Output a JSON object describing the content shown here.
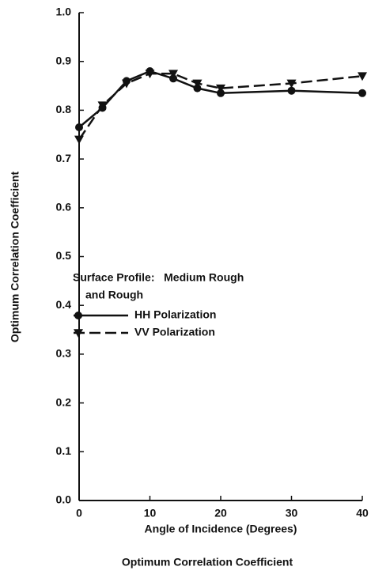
{
  "chart_data": {
    "type": "line",
    "x_label": "Angle of Incidence (Degrees)",
    "y_label": "Optimum Correlation Coefficient",
    "caption": "Optimum Correlation Coefficient",
    "legend_title": [
      "Surface Profile:   Medium Rough",
      "and Rough"
    ],
    "xlim": [
      0,
      40
    ],
    "xticks": [
      0,
      10,
      20,
      30,
      40
    ],
    "ylim": [
      0,
      1
    ],
    "yticks": [
      {
        "value": 0,
        "label": "0.0"
      },
      0.1,
      0.2,
      0.3,
      0.4,
      0.5,
      0.6,
      0.7,
      0.8,
      0.9,
      {
        "value": 1,
        "label": "1.0"
      }
    ],
    "grid": false,
    "series": [
      {
        "name": "HH Polarization",
        "color": "#111111",
        "dash": "solid",
        "marker": "circle",
        "x": [
          0,
          3.3,
          6.7,
          10,
          13.3,
          16.7,
          20,
          30,
          40
        ],
        "values": [
          0.765,
          0.805,
          0.86,
          0.88,
          0.865,
          0.845,
          0.835,
          0.84,
          0.835
        ]
      },
      {
        "name": "VV Polarization",
        "color": "#111111",
        "dash": "dashed",
        "marker": "triangle-down",
        "x": [
          0,
          3.3,
          6.7,
          10,
          13.3,
          16.7,
          20,
          30,
          40
        ],
        "values": [
          0.74,
          0.81,
          0.855,
          0.875,
          0.875,
          0.855,
          0.845,
          0.855,
          0.87
        ]
      }
    ]
  }
}
